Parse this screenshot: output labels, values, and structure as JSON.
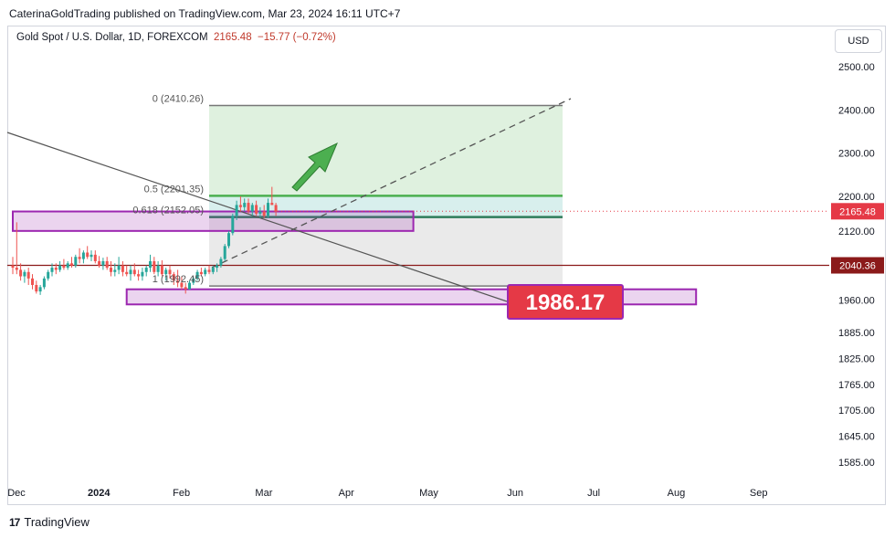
{
  "publisher": "CaterinaGoldTrading published on TradingView.com, Mar 23, 2024 16:11 UTC+7",
  "symbol": {
    "name": "Gold Spot / U.S. Dollar, 1D, FOREXCOM",
    "price": "2165.48",
    "change": "−15.77 (−0.72%)"
  },
  "currency_button": "USD",
  "brand": {
    "logo_text": "17",
    "name": "TradingView"
  },
  "colors": {
    "bull": "#26a69a",
    "bear": "#ef5350",
    "fib_green": "#4caf50",
    "zone_purple": "#9c27b0",
    "price_red": "#e53946",
    "support_line": "#8b1a1a"
  },
  "chart_data": {
    "type": "candlestick",
    "ylim": [
      1550,
      2600
    ],
    "y_ticks": [
      2500,
      2400,
      2300,
      2200,
      2120,
      1960,
      1885,
      1825,
      1765,
      1705,
      1645,
      1585
    ],
    "y_tick_labels": [
      "2500.00",
      "2400.00",
      "2300.00",
      "2200.00",
      "2120.00",
      "1960.00",
      "1885.00",
      "1825.00",
      "1765.00",
      "1705.00",
      "1645.00",
      "1585.00"
    ],
    "x_tick_labels": [
      "Dec",
      "2024",
      "Feb",
      "Mar",
      "Apr",
      "May",
      "Jun",
      "Jul",
      "Aug",
      "Sep"
    ],
    "x_tick_days": [
      0,
      21,
      42,
      63,
      84,
      105,
      127,
      147,
      168,
      189
    ],
    "current_price": {
      "value": 2165.48,
      "label": "2165.48"
    },
    "horizontal_level": {
      "value": 2040.36,
      "label": "2040.36"
    },
    "fibonacci": {
      "levels": [
        {
          "ratio": "0",
          "value": 2410.26,
          "label": "0 (2410.26)"
        },
        {
          "ratio": "0.5",
          "value": 2201.35,
          "label": "0.5 (2201.35)"
        },
        {
          "ratio": "0.618",
          "value": 2152.05,
          "label": "0.618 (2152.05)"
        },
        {
          "ratio": "1",
          "value": 1992.45,
          "label": "1 (1992.45)"
        }
      ],
      "start_day": 50,
      "end_day": 140
    },
    "zones": [
      {
        "name": "resistance-zone",
        "top": 2165,
        "bottom": 2120,
        "start_day": 0,
        "end_day": 102
      },
      {
        "name": "support-zone",
        "top": 1985,
        "bottom": 1950,
        "start_day": 29,
        "end_day": 174
      }
    ],
    "target_label": "1986.17",
    "candles": [
      {
        "d": 0,
        "o": 2040,
        "h": 2060,
        "l": 2020,
        "c": 2035
      },
      {
        "d": 1,
        "o": 2035,
        "h": 2140,
        "l": 2020,
        "c": 2030
      },
      {
        "d": 2,
        "o": 2030,
        "h": 2045,
        "l": 2005,
        "c": 2015
      },
      {
        "d": 3,
        "o": 2015,
        "h": 2030,
        "l": 2000,
        "c": 2025
      },
      {
        "d": 4,
        "o": 2025,
        "h": 2035,
        "l": 1995,
        "c": 2010
      },
      {
        "d": 5,
        "o": 2010,
        "h": 2020,
        "l": 1985,
        "c": 1995
      },
      {
        "d": 6,
        "o": 1995,
        "h": 2005,
        "l": 1975,
        "c": 1980
      },
      {
        "d": 7,
        "o": 1980,
        "h": 1995,
        "l": 1972,
        "c": 1990
      },
      {
        "d": 8,
        "o": 1990,
        "h": 2015,
        "l": 1985,
        "c": 2010
      },
      {
        "d": 9,
        "o": 2010,
        "h": 2030,
        "l": 2005,
        "c": 2025
      },
      {
        "d": 10,
        "o": 2025,
        "h": 2045,
        "l": 2015,
        "c": 2035
      },
      {
        "d": 11,
        "o": 2035,
        "h": 2045,
        "l": 2020,
        "c": 2030
      },
      {
        "d": 12,
        "o": 2030,
        "h": 2050,
        "l": 2025,
        "c": 2040
      },
      {
        "d": 13,
        "o": 2040,
        "h": 2055,
        "l": 2030,
        "c": 2035
      },
      {
        "d": 14,
        "o": 2035,
        "h": 2050,
        "l": 2030,
        "c": 2045
      },
      {
        "d": 15,
        "o": 2045,
        "h": 2060,
        "l": 2035,
        "c": 2040
      },
      {
        "d": 16,
        "o": 2040,
        "h": 2065,
        "l": 2035,
        "c": 2060
      },
      {
        "d": 17,
        "o": 2060,
        "h": 2080,
        "l": 2045,
        "c": 2055
      },
      {
        "d": 18,
        "o": 2055,
        "h": 2075,
        "l": 2045,
        "c": 2070
      },
      {
        "d": 19,
        "o": 2070,
        "h": 2085,
        "l": 2055,
        "c": 2060
      },
      {
        "d": 20,
        "o": 2060,
        "h": 2075,
        "l": 2050,
        "c": 2065
      },
      {
        "d": 21,
        "o": 2065,
        "h": 2075,
        "l": 2045,
        "c": 2050
      },
      {
        "d": 22,
        "o": 2050,
        "h": 2062,
        "l": 2035,
        "c": 2040
      },
      {
        "d": 23,
        "o": 2040,
        "h": 2058,
        "l": 2030,
        "c": 2050
      },
      {
        "d": 24,
        "o": 2050,
        "h": 2060,
        "l": 2030,
        "c": 2035
      },
      {
        "d": 25,
        "o": 2035,
        "h": 2050,
        "l": 2015,
        "c": 2025
      },
      {
        "d": 26,
        "o": 2025,
        "h": 2045,
        "l": 2015,
        "c": 2030
      },
      {
        "d": 27,
        "o": 2030,
        "h": 2060,
        "l": 2020,
        "c": 2040
      },
      {
        "d": 28,
        "o": 2040,
        "h": 2050,
        "l": 2015,
        "c": 2025
      },
      {
        "d": 29,
        "o": 2025,
        "h": 2040,
        "l": 2015,
        "c": 2020
      },
      {
        "d": 30,
        "o": 2020,
        "h": 2040,
        "l": 2005,
        "c": 2030
      },
      {
        "d": 31,
        "o": 2030,
        "h": 2045,
        "l": 2015,
        "c": 2020
      },
      {
        "d": 32,
        "o": 2020,
        "h": 2030,
        "l": 2005,
        "c": 2015
      },
      {
        "d": 33,
        "o": 2015,
        "h": 2035,
        "l": 2005,
        "c": 2025
      },
      {
        "d": 34,
        "o": 2025,
        "h": 2040,
        "l": 2015,
        "c": 2035
      },
      {
        "d": 35,
        "o": 2035,
        "h": 2065,
        "l": 2025,
        "c": 2050
      },
      {
        "d": 36,
        "o": 2050,
        "h": 2060,
        "l": 2020,
        "c": 2025
      },
      {
        "d": 37,
        "o": 2025,
        "h": 2050,
        "l": 2015,
        "c": 2040
      },
      {
        "d": 38,
        "o": 2040,
        "h": 2052,
        "l": 2015,
        "c": 2020
      },
      {
        "d": 39,
        "o": 2020,
        "h": 2035,
        "l": 2005,
        "c": 2030
      },
      {
        "d": 40,
        "o": 2030,
        "h": 2040,
        "l": 2010,
        "c": 2020
      },
      {
        "d": 41,
        "o": 2020,
        "h": 2025,
        "l": 1995,
        "c": 2005
      },
      {
        "d": 42,
        "o": 2005,
        "h": 2030,
        "l": 1990,
        "c": 2000
      },
      {
        "d": 43,
        "o": 2000,
        "h": 2015,
        "l": 1984,
        "c": 1990
      },
      {
        "d": 44,
        "o": 1990,
        "h": 2000,
        "l": 1975,
        "c": 1985
      },
      {
        "d": 45,
        "o": 1985,
        "h": 2005,
        "l": 1984,
        "c": 2000
      },
      {
        "d": 46,
        "o": 2000,
        "h": 2015,
        "l": 1995,
        "c": 2010
      },
      {
        "d": 47,
        "o": 2010,
        "h": 2030,
        "l": 2005,
        "c": 2025
      },
      {
        "d": 48,
        "o": 2025,
        "h": 2035,
        "l": 2015,
        "c": 2020
      },
      {
        "d": 49,
        "o": 2020,
        "h": 2035,
        "l": 2015,
        "c": 2030
      },
      {
        "d": 50,
        "o": 2030,
        "h": 2040,
        "l": 2020,
        "c": 2025
      },
      {
        "d": 51,
        "o": 2025,
        "h": 2040,
        "l": 2020,
        "c": 2035
      },
      {
        "d": 52,
        "o": 2035,
        "h": 2045,
        "l": 2025,
        "c": 2040
      },
      {
        "d": 53,
        "o": 2040,
        "h": 2060,
        "l": 2035,
        "c": 2055
      },
      {
        "d": 54,
        "o": 2055,
        "h": 2090,
        "l": 2050,
        "c": 2085
      },
      {
        "d": 55,
        "o": 2085,
        "h": 2120,
        "l": 2080,
        "c": 2115
      },
      {
        "d": 56,
        "o": 2115,
        "h": 2160,
        "l": 2110,
        "c": 2155
      },
      {
        "d": 57,
        "o": 2155,
        "h": 2190,
        "l": 2145,
        "c": 2180
      },
      {
        "d": 58,
        "o": 2180,
        "h": 2200,
        "l": 2165,
        "c": 2175
      },
      {
        "d": 59,
        "o": 2175,
        "h": 2195,
        "l": 2165,
        "c": 2185
      },
      {
        "d": 60,
        "o": 2185,
        "h": 2195,
        "l": 2160,
        "c": 2165
      },
      {
        "d": 61,
        "o": 2165,
        "h": 2185,
        "l": 2155,
        "c": 2180
      },
      {
        "d": 62,
        "o": 2180,
        "h": 2190,
        "l": 2155,
        "c": 2160
      },
      {
        "d": 63,
        "o": 2160,
        "h": 2175,
        "l": 2150,
        "c": 2165
      },
      {
        "d": 64,
        "o": 2165,
        "h": 2180,
        "l": 2150,
        "c": 2155
      },
      {
        "d": 65,
        "o": 2155,
        "h": 2195,
        "l": 2150,
        "c": 2185
      },
      {
        "d": 66,
        "o": 2185,
        "h": 2222,
        "l": 2180,
        "c": 2180
      },
      {
        "d": 67,
        "o": 2180,
        "h": 2185,
        "l": 2155,
        "c": 2165
      }
    ]
  }
}
